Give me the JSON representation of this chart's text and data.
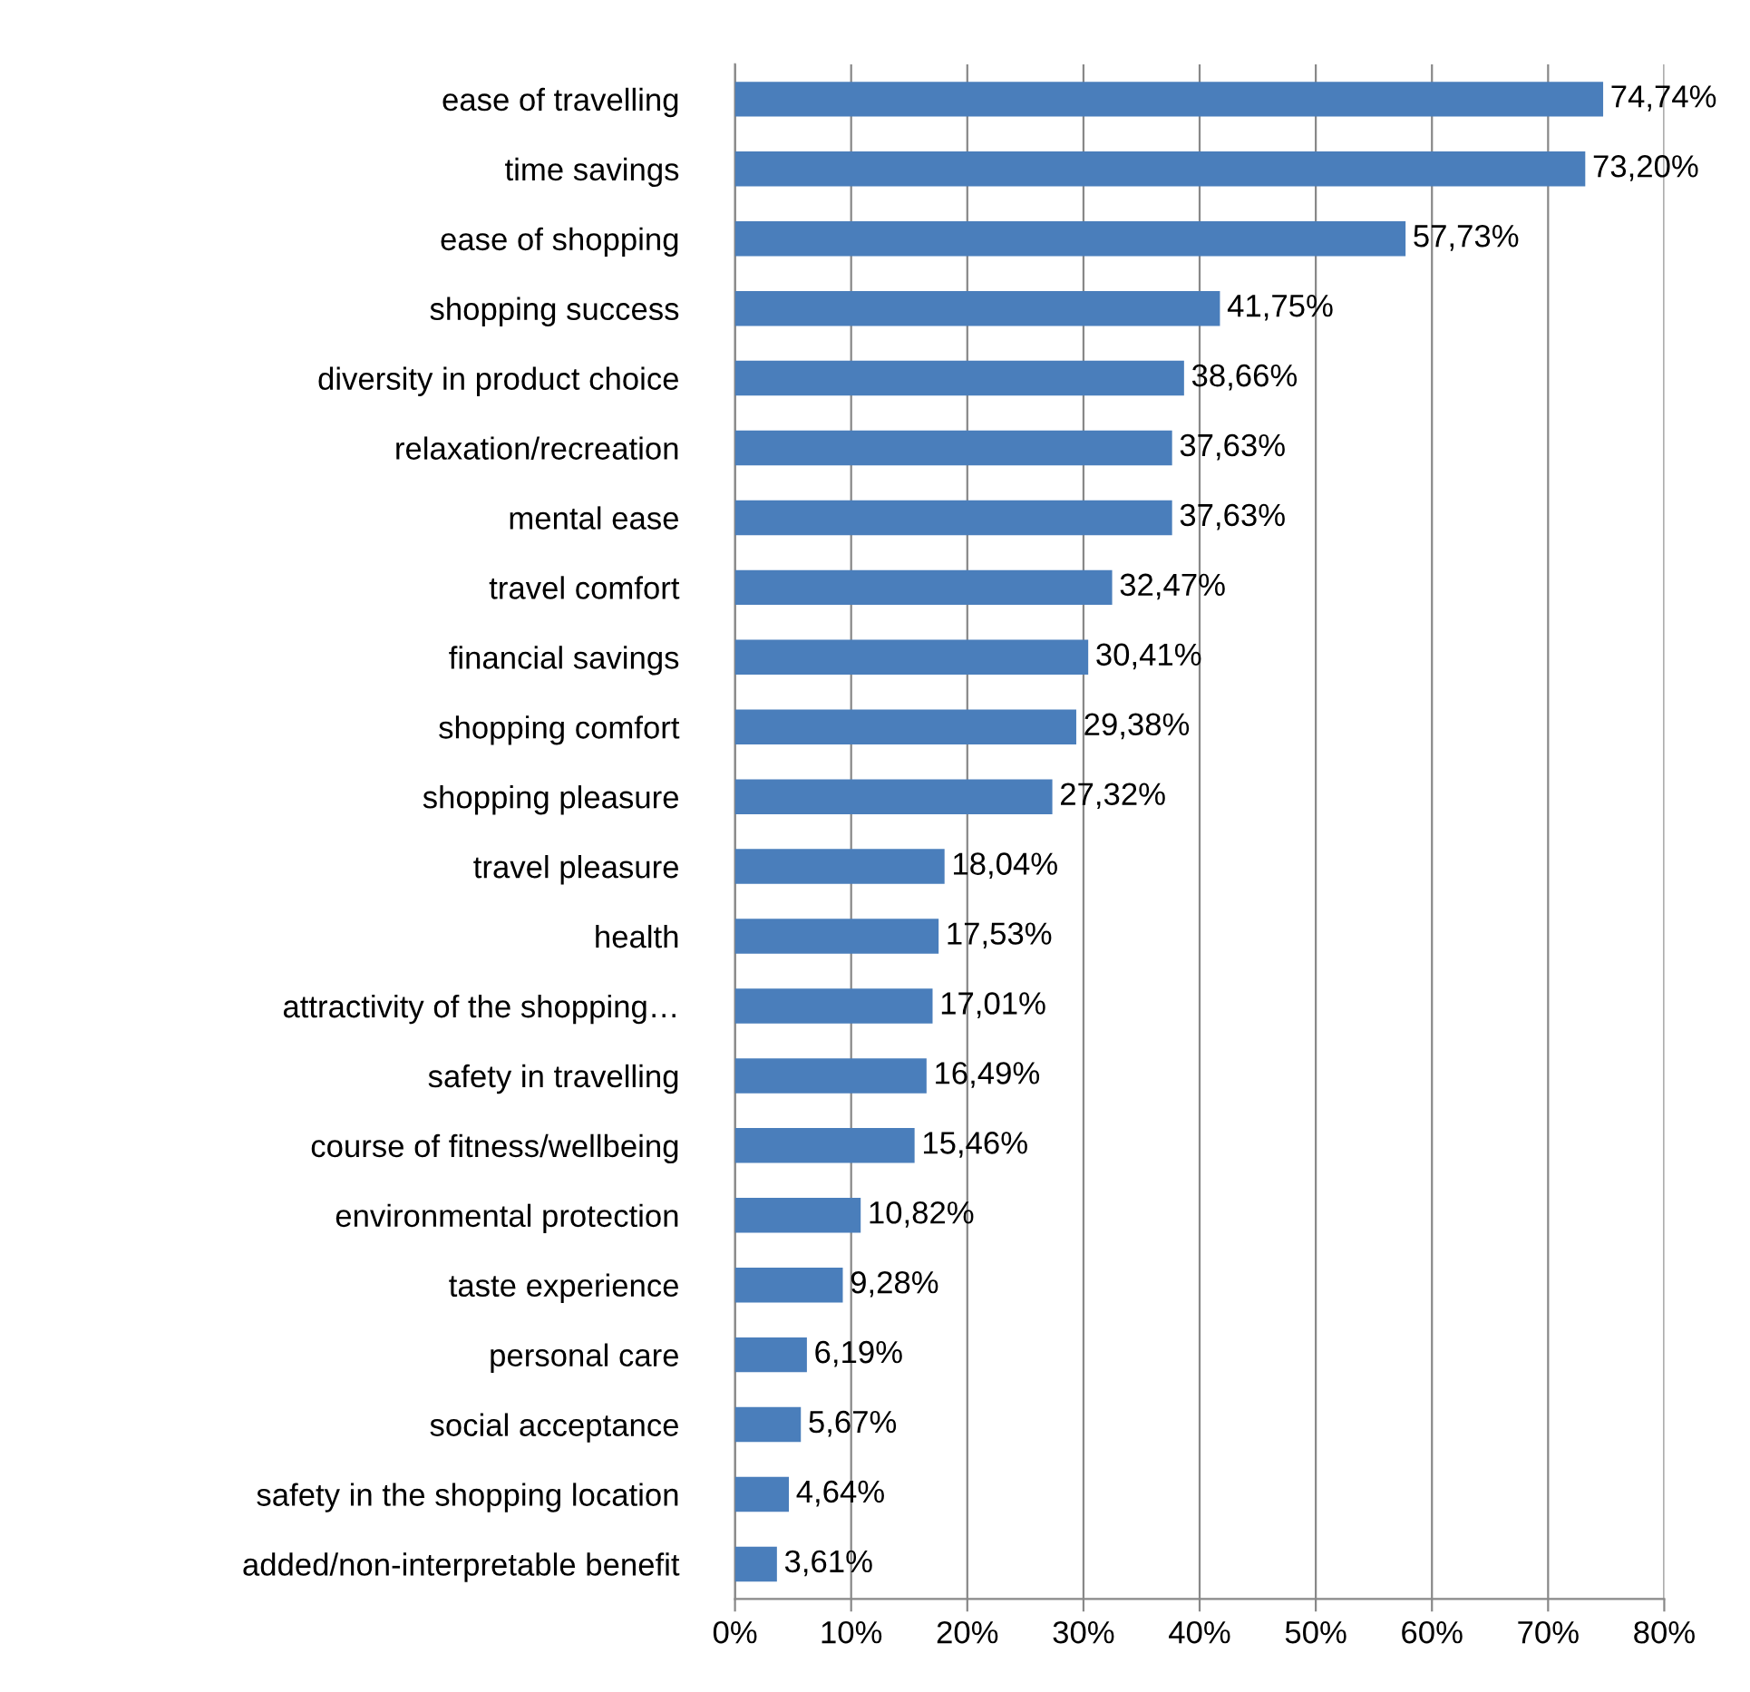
{
  "chart_data": {
    "type": "bar",
    "orientation": "horizontal",
    "categories": [
      "ease of travelling",
      "time savings",
      "ease of shopping",
      "shopping success",
      "diversity in product choice",
      "relaxation/recreation",
      "mental ease",
      "travel comfort",
      "financial savings",
      "shopping comfort",
      "shopping pleasure",
      "travel pleasure",
      "health",
      "attractivity of the shopping…",
      "safety in travelling",
      "course of fitness/wellbeing",
      "environmental protection",
      "taste experience",
      "personal care",
      "social acceptance",
      "safety in the shopping location",
      "added/non-interpretable benefit"
    ],
    "values": [
      74.74,
      73.2,
      57.73,
      41.75,
      38.66,
      37.63,
      37.63,
      32.47,
      30.41,
      29.38,
      27.32,
      18.04,
      17.53,
      17.01,
      16.49,
      15.46,
      10.82,
      9.28,
      6.19,
      5.67,
      4.64,
      3.61
    ],
    "value_labels": [
      "74,74%",
      "73,20%",
      "57,73%",
      "41,75%",
      "38,66%",
      "37,63%",
      "37,63%",
      "32,47%",
      "30,41%",
      "29,38%",
      "27,32%",
      "18,04%",
      "17,53%",
      "17,01%",
      "16,49%",
      "15,46%",
      "10,82%",
      "9,28%",
      "6,19%",
      "5,67%",
      "4,64%",
      "3,61%"
    ],
    "color": "#4a7ebb",
    "xlim": [
      0,
      80
    ],
    "xticks": [
      {
        "value": 0,
        "label": "0%"
      },
      {
        "value": 10,
        "label": "10%"
      },
      {
        "value": 20,
        "label": "20%"
      },
      {
        "value": 30,
        "label": "30%"
      },
      {
        "value": 40,
        "label": "40%"
      },
      {
        "value": 50,
        "label": "50%"
      },
      {
        "value": 60,
        "label": "60%"
      },
      {
        "value": 70,
        "label": "70%"
      },
      {
        "value": 80,
        "label": "80%"
      }
    ],
    "grid": "x",
    "legend": false
  }
}
